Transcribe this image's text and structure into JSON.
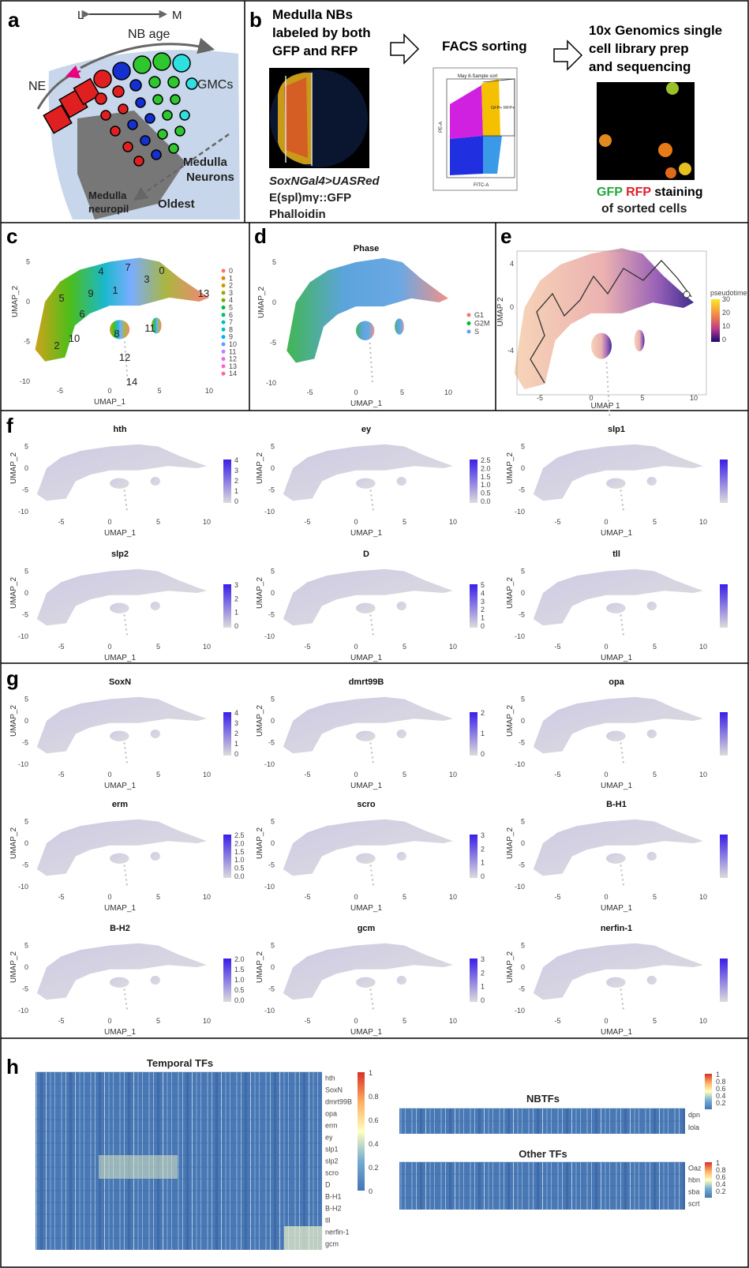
{
  "panel_a": {
    "letter": "a",
    "axis_left": "L",
    "axis_right": "M",
    "nb_age": "NB age",
    "ne": "NE",
    "gmcs": "GMCs",
    "neurons": [
      "Medulla",
      "Neurons"
    ],
    "neuropil": [
      "Medulla",
      "neuropil"
    ],
    "oldest": "Oldest"
  },
  "panel_b": {
    "letter": "b",
    "step1": [
      "Medulla NBs",
      "labeled by both",
      "GFP and RFP"
    ],
    "step2": "FACS sorting",
    "step3": [
      "10x Genomics single",
      "cell library prep",
      "and sequencing"
    ],
    "genotype": [
      "SoxNGal4>UASRed",
      "E(spl)mγ::GFP",
      "Phalloidin"
    ],
    "facs": {
      "title": "May 8-Sample sort",
      "gate": "GFP+ RFP+",
      "x_label": "FITC-A",
      "y_label": "PE-A"
    },
    "stain": {
      "gfp": "GFP",
      "rfp": "RFP",
      "rest": "staining",
      "line2": "of sorted cells"
    }
  },
  "panel_c": {
    "letter": "c",
    "x_label": "UMAP_1",
    "y_label": "UMAP_2",
    "x_ticks": [
      "-5",
      "0",
      "5",
      "10"
    ],
    "y_ticks": [
      "5",
      "0",
      "-5",
      "-10"
    ],
    "clusters": [
      {
        "label": "0",
        "color": "#F8766D"
      },
      {
        "label": "1",
        "color": "#E58700"
      },
      {
        "label": "2",
        "color": "#C99800"
      },
      {
        "label": "3",
        "color": "#A3A500"
      },
      {
        "label": "4",
        "color": "#6BB100"
      },
      {
        "label": "5",
        "color": "#00BA38"
      },
      {
        "label": "6",
        "color": "#00BF7D"
      },
      {
        "label": "7",
        "color": "#00C0AF"
      },
      {
        "label": "8",
        "color": "#00BCD8"
      },
      {
        "label": "9",
        "color": "#00B0F6"
      },
      {
        "label": "10",
        "color": "#619CFF"
      },
      {
        "label": "11",
        "color": "#B983FF"
      },
      {
        "label": "12",
        "color": "#E76BF3"
      },
      {
        "label": "13",
        "color": "#FD61D1"
      },
      {
        "label": "14",
        "color": "#FF67A4"
      }
    ]
  },
  "panel_d": {
    "letter": "d",
    "title": "Phase",
    "x_label": "UMAP_1",
    "y_label": "UMAP_2",
    "x_ticks": [
      "-5",
      "0",
      "5",
      "10"
    ],
    "y_ticks": [
      "5",
      "0",
      "-5",
      "-10"
    ],
    "legend": [
      {
        "label": "G1",
        "color": "#F8766D"
      },
      {
        "label": "G2M",
        "color": "#00BA38"
      },
      {
        "label": "S",
        "color": "#619CFF"
      }
    ]
  },
  "panel_e": {
    "letter": "e",
    "x_label": "UMAP 1",
    "y_label": "UMAP 2",
    "x_ticks": [
      "-5",
      "0",
      "5",
      "10"
    ],
    "y_ticks": [
      "4",
      "0",
      "-4"
    ],
    "legend_title": "pseudotime",
    "legend_ticks": [
      "30",
      "20",
      "10",
      "0"
    ]
  },
  "panel_f": {
    "letter": "f",
    "x_label": "UMAP_1",
    "y_label": "UMAP_2",
    "x_ticks": [
      "-5",
      "0",
      "5",
      "10"
    ],
    "y_ticks": [
      "5",
      "0",
      "-5",
      "-10"
    ],
    "plots": [
      {
        "title": "hth",
        "legend_ticks": [
          "4",
          "3",
          "2",
          "1",
          "0"
        ]
      },
      {
        "title": "ey",
        "legend_ticks": [
          "2.5",
          "2.0",
          "1.5",
          "1.0",
          "0.5",
          "0.0"
        ]
      },
      {
        "title": "slp1",
        "legend_ticks": []
      },
      {
        "title": "slp2",
        "legend_ticks": [
          "3",
          "2",
          "1",
          "0"
        ]
      },
      {
        "title": "D",
        "legend_ticks": [
          "5",
          "4",
          "3",
          "2",
          "1",
          "0"
        ]
      },
      {
        "title": "tll",
        "legend_ticks": []
      }
    ]
  },
  "panel_g": {
    "letter": "g",
    "x_label": "UMAP_1",
    "y_label": "UMAP_2",
    "x_ticks": [
      "-5",
      "0",
      "5",
      "10"
    ],
    "y_ticks": [
      "5",
      "0",
      "-5",
      "-10"
    ],
    "plots": [
      {
        "title": "SoxN",
        "legend_ticks": [
          "4",
          "3",
          "2",
          "1",
          "0"
        ]
      },
      {
        "title": "dmrt99B",
        "legend_ticks": [
          "2",
          "1",
          "0"
        ]
      },
      {
        "title": "opa",
        "legend_ticks": []
      },
      {
        "title": "erm",
        "legend_ticks": [
          "2.5",
          "2.0",
          "1.5",
          "1.0",
          "0.5",
          "0.0"
        ]
      },
      {
        "title": "scro",
        "legend_ticks": [
          "3",
          "2",
          "1",
          "0"
        ]
      },
      {
        "title": "B-H1",
        "legend_ticks": []
      },
      {
        "title": "B-H2",
        "legend_ticks": [
          "2.0",
          "1.5",
          "1.0",
          "0.5",
          "0.0"
        ]
      },
      {
        "title": "gcm",
        "legend_ticks": [
          "3",
          "2",
          "1",
          "0"
        ]
      },
      {
        "title": "nerfin-1",
        "legend_ticks": []
      }
    ]
  },
  "panel_h": {
    "letter": "h",
    "temporal": {
      "title": "Temporal TFs",
      "rows": [
        "hth",
        "SoxN",
        "dmrt99B",
        "opa",
        "erm",
        "ey",
        "slp1",
        "slp2",
        "scro",
        "D",
        "B-H1",
        "B-H2",
        "tll",
        "nerfin-1",
        "gcm"
      ],
      "scale": [
        "1",
        "0.8",
        "0.6",
        "0.4",
        "0.2",
        "0"
      ]
    },
    "nbtfs": {
      "title": "NBTFs",
      "rows": [
        "dpn",
        "lola"
      ],
      "scale": [
        "1",
        "0.8",
        "0.6",
        "0.4",
        "0.2"
      ]
    },
    "other": {
      "title": "Other TFs",
      "rows": [
        "Oaz",
        "hbn",
        "sba",
        "scrt"
      ],
      "scale": [
        "1",
        "0.8",
        "0.6",
        "0.4",
        "0.2"
      ]
    }
  }
}
